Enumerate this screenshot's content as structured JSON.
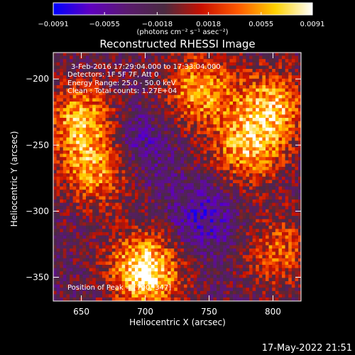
{
  "chart_data": {
    "type": "heatmap",
    "title": "Reconstructed RHESSI Image",
    "xlabel": "Heliocentric X (arcsec)",
    "ylabel": "Heliocentric Y (arcsec)",
    "xlim": [
      628,
      822
    ],
    "ylim": [
      -368,
      -180
    ],
    "x_ticks": [
      650,
      700,
      750,
      800
    ],
    "x_tick_labels": [
      "650",
      "700",
      "750",
      "800"
    ],
    "y_ticks": [
      -200,
      -250,
      -300,
      -350
    ],
    "y_tick_labels": [
      "−200",
      "−250",
      "−300",
      "−350"
    ],
    "colorbar": {
      "min": -0.0091,
      "max": 0.0091,
      "ticks": [
        -0.0091,
        -0.0055,
        -0.0018,
        0.0018,
        0.0055,
        0.0091
      ],
      "tick_labels": [
        "−0.0091",
        "−0.0055",
        "−0.0018",
        "0.0018",
        "0.0055",
        "0.0091"
      ],
      "units_label": "(photons cm⁻² s⁻¹ asec⁻²)",
      "colormap": [
        "#0000ff",
        "#6000c0",
        "#5a1a6e",
        "#4a2a40",
        "#c81000",
        "#ff5a00",
        "#ffd200",
        "#ffffff"
      ]
    },
    "annotations": [
      "3-Feb-2016 17:29:04.000 to 17:33:04.000",
      "Detectors: 1F 5F 7F, Att 0",
      "Energy Range: 25.0 - 50.0 keV",
      "Clean : Total counts: 1.27E+04",
      "Position of Peak = [700,-347]"
    ],
    "peak": {
      "x": 700,
      "y": -347
    },
    "sources": [
      {
        "x": 650,
        "y": -230,
        "strength": "bright"
      },
      {
        "x": 662,
        "y": -268,
        "strength": "bright"
      },
      {
        "x": 700,
        "y": -345,
        "strength": "peak"
      },
      {
        "x": 742,
        "y": -208,
        "strength": "bright"
      },
      {
        "x": 780,
        "y": -252,
        "strength": "bright"
      },
      {
        "x": 800,
        "y": -220,
        "strength": "bright"
      },
      {
        "x": 805,
        "y": -330,
        "strength": "moderate"
      },
      {
        "x": 690,
        "y": -250,
        "strength": "dark"
      },
      {
        "x": 745,
        "y": -305,
        "strength": "dark"
      }
    ]
  },
  "footer": {
    "timestamp": "17-May-2022 21:51"
  }
}
